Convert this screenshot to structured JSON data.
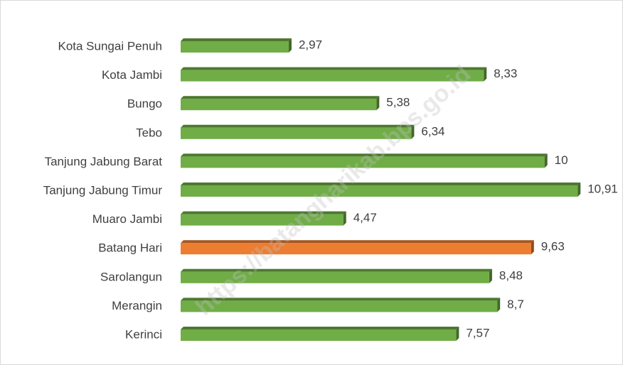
{
  "chart_data": {
    "type": "bar",
    "orientation": "horizontal",
    "categories": [
      "Kota Sungai Penuh",
      "Kota Jambi",
      "Bungo",
      "Tebo",
      "Tanjung Jabung Barat",
      "Tanjung Jabung Timur",
      "Muaro Jambi",
      "Batang Hari",
      "Sarolangun",
      "Merangin",
      "Kerinci"
    ],
    "values": [
      2.97,
      8.33,
      5.38,
      6.34,
      10,
      10.91,
      4.47,
      9.63,
      8.48,
      8.7,
      7.57
    ],
    "value_labels": [
      "2,97",
      "8,33",
      "5,38",
      "6,34",
      "10",
      "10,91",
      "4,47",
      "9,63",
      "8,48",
      "8,7",
      "7,57"
    ],
    "colors": [
      "#70ad47",
      "#70ad47",
      "#70ad47",
      "#70ad47",
      "#70ad47",
      "#70ad47",
      "#70ad47",
      "#ed7d31",
      "#70ad47",
      "#70ad47",
      "#70ad47"
    ],
    "xlim": [
      0,
      12
    ],
    "watermark": "https://batangharikab.bps.go.id"
  }
}
